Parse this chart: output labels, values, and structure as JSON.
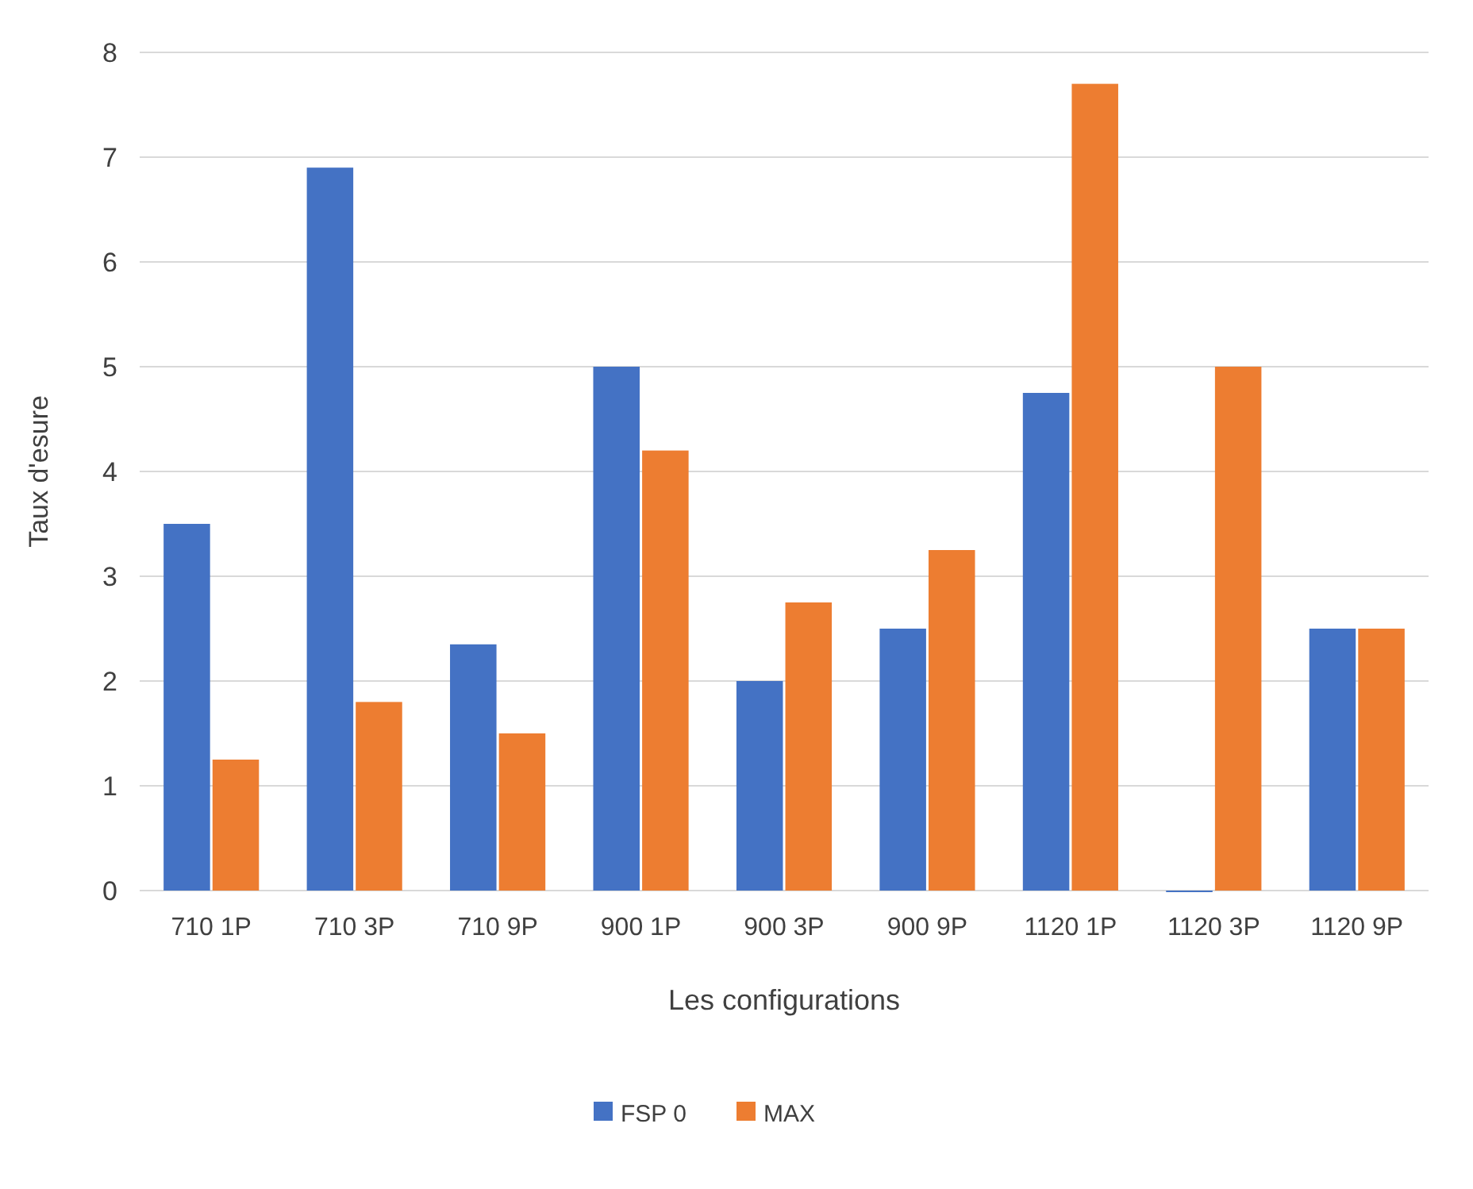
{
  "chart_data": {
    "type": "bar",
    "xlabel": "Les configurations",
    "ylabel": "Taux d'esure",
    "categories": [
      "710 1P",
      "710 3P",
      "710 9P",
      "900 1P",
      "900 3P",
      "900 9P",
      "1120 1P",
      "1120 3P",
      "1120 9P"
    ],
    "series": [
      {
        "name": "FSP 0",
        "color": "#4472c4",
        "values": [
          3.5,
          6.9,
          2.35,
          5.0,
          2.0,
          2.5,
          4.75,
          0,
          2.5
        ]
      },
      {
        "name": "MAX",
        "color": "#ed7d31",
        "values": [
          1.25,
          1.8,
          1.5,
          4.2,
          2.75,
          3.25,
          7.7,
          5.0,
          2.5
        ]
      }
    ],
    "ylim": [
      0,
      8
    ],
    "yticks": [
      0,
      1,
      2,
      3,
      4,
      5,
      6,
      7,
      8
    ],
    "grid": "y",
    "legend": "bottom"
  }
}
